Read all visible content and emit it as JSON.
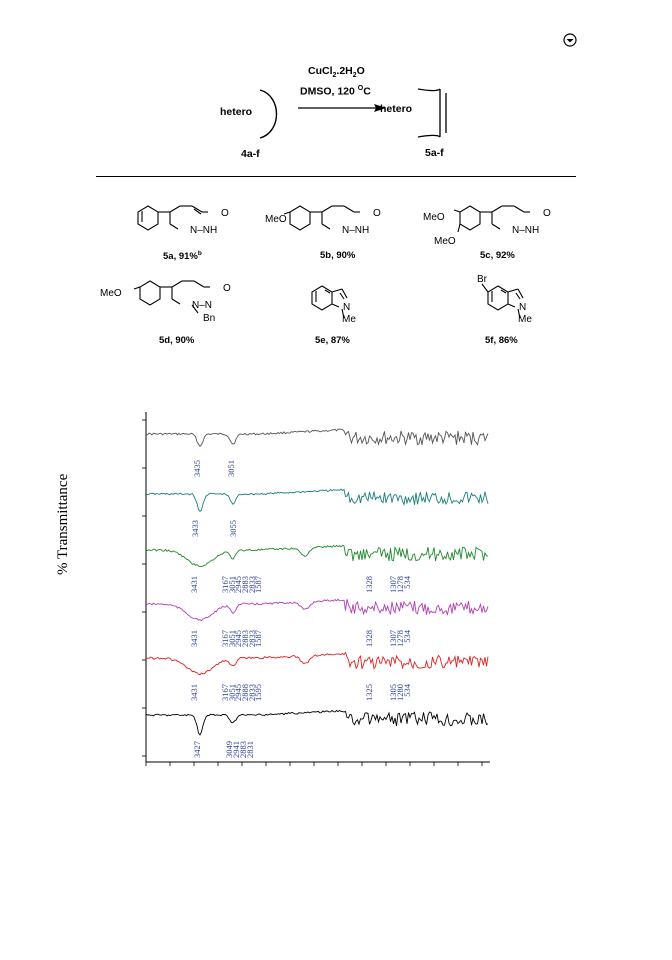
{
  "scheme": {
    "reagent_line1": "CuCl2.2H2O",
    "reagent_line2": "DMSO, 120 °C",
    "reactant_text": "hetero",
    "reactant_label": "4a-f",
    "product_text": "hetero",
    "product_label": "5a-f"
  },
  "compounds": [
    {
      "label": "5a, 91%b",
      "subs": [
        "N–NH",
        "O"
      ]
    },
    {
      "label": "5b, 90%",
      "subs": [
        "MeO",
        "N–NH",
        "O"
      ]
    },
    {
      "label": "5c, 92%",
      "subs": [
        "MeO",
        "MeO",
        "N–NH",
        "O"
      ]
    },
    {
      "label": "5d, 90%",
      "subs": [
        "MeO",
        "N–N",
        "O",
        "Bn"
      ]
    },
    {
      "label": "5e, 87%",
      "subs": [
        "N",
        "Me"
      ]
    },
    {
      "label": "5f, 86%",
      "subs": [
        "Br",
        "N",
        "Me"
      ]
    }
  ],
  "ir_chart": {
    "ylabel": "% Transmittance",
    "series": [
      {
        "color": "#555555",
        "peaks": [
          "3435",
          "3051"
        ]
      },
      {
        "color": "#1a7f7a",
        "peaks": [
          "3433",
          "3055"
        ]
      },
      {
        "color": "#1f8a2e",
        "peaks": [
          "3431",
          "3167",
          "3051",
          "2945",
          "2883",
          "2833",
          "1587",
          "1328",
          "1307",
          "1278",
          "534"
        ]
      },
      {
        "color": "#b13fb5",
        "peaks": [
          "3431",
          "3167",
          "3051",
          "2945",
          "2883",
          "2833",
          "1587",
          "1328",
          "1307",
          "1278",
          "534"
        ]
      },
      {
        "color": "#e02020",
        "peaks": [
          "3431",
          "3167",
          "3051",
          "2945",
          "2888",
          "2833",
          "1595",
          "1325",
          "1305",
          "1280",
          "534"
        ]
      },
      {
        "color": "#000000",
        "peaks": [
          "3427",
          "3049",
          "2941",
          "2883",
          "2831"
        ]
      }
    ]
  }
}
